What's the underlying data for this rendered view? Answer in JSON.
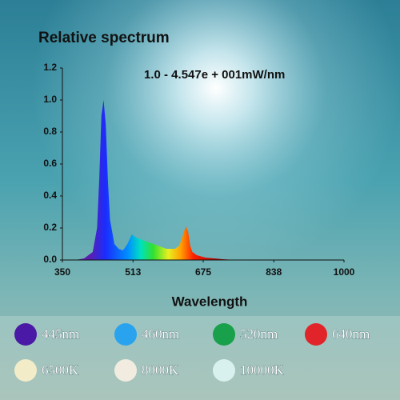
{
  "chart_data": {
    "type": "area",
    "title": "Relative spectrum",
    "annotation": "1.0 - 4.547e + 001mW/nm",
    "x_label": "Wavelength",
    "x": [
      380,
      400,
      420,
      430,
      435,
      440,
      445,
      450,
      455,
      460,
      470,
      480,
      490,
      500,
      510,
      520,
      530,
      540,
      550,
      560,
      570,
      580,
      590,
      600,
      610,
      620,
      630,
      635,
      640,
      645,
      650,
      660,
      680,
      700,
      720,
      750
    ],
    "values": [
      0,
      0.01,
      0.05,
      0.2,
      0.5,
      0.9,
      1.0,
      0.85,
      0.5,
      0.25,
      0.1,
      0.07,
      0.06,
      0.1,
      0.16,
      0.14,
      0.13,
      0.12,
      0.11,
      0.1,
      0.09,
      0.08,
      0.07,
      0.07,
      0.07,
      0.09,
      0.17,
      0.21,
      0.18,
      0.09,
      0.05,
      0.03,
      0.015,
      0.01,
      0.005,
      0
    ],
    "xlim": [
      350,
      1000
    ],
    "xticks": [
      350,
      513,
      675,
      838,
      1000
    ],
    "ylim": [
      0,
      1.2
    ],
    "yticks": [
      {
        "value": 0,
        "label": "0.0"
      },
      0.2,
      0.4,
      0.6,
      0.8,
      {
        "value": 1,
        "label": "1.0"
      },
      1.2
    ],
    "legend": [
      {
        "label": "445nm",
        "color": "#4a1aa6"
      },
      {
        "label": "460nm",
        "color": "#2aa3ef"
      },
      {
        "label": "520nm",
        "color": "#18a04a"
      },
      {
        "label": "640nm",
        "color": "#e0242a"
      },
      {
        "label": "6500K",
        "color": "#f3ecc9"
      },
      {
        "label": "8000K",
        "color": "#f2ece0"
      },
      {
        "label": "10000K",
        "color": "#d8f0ee"
      }
    ]
  }
}
